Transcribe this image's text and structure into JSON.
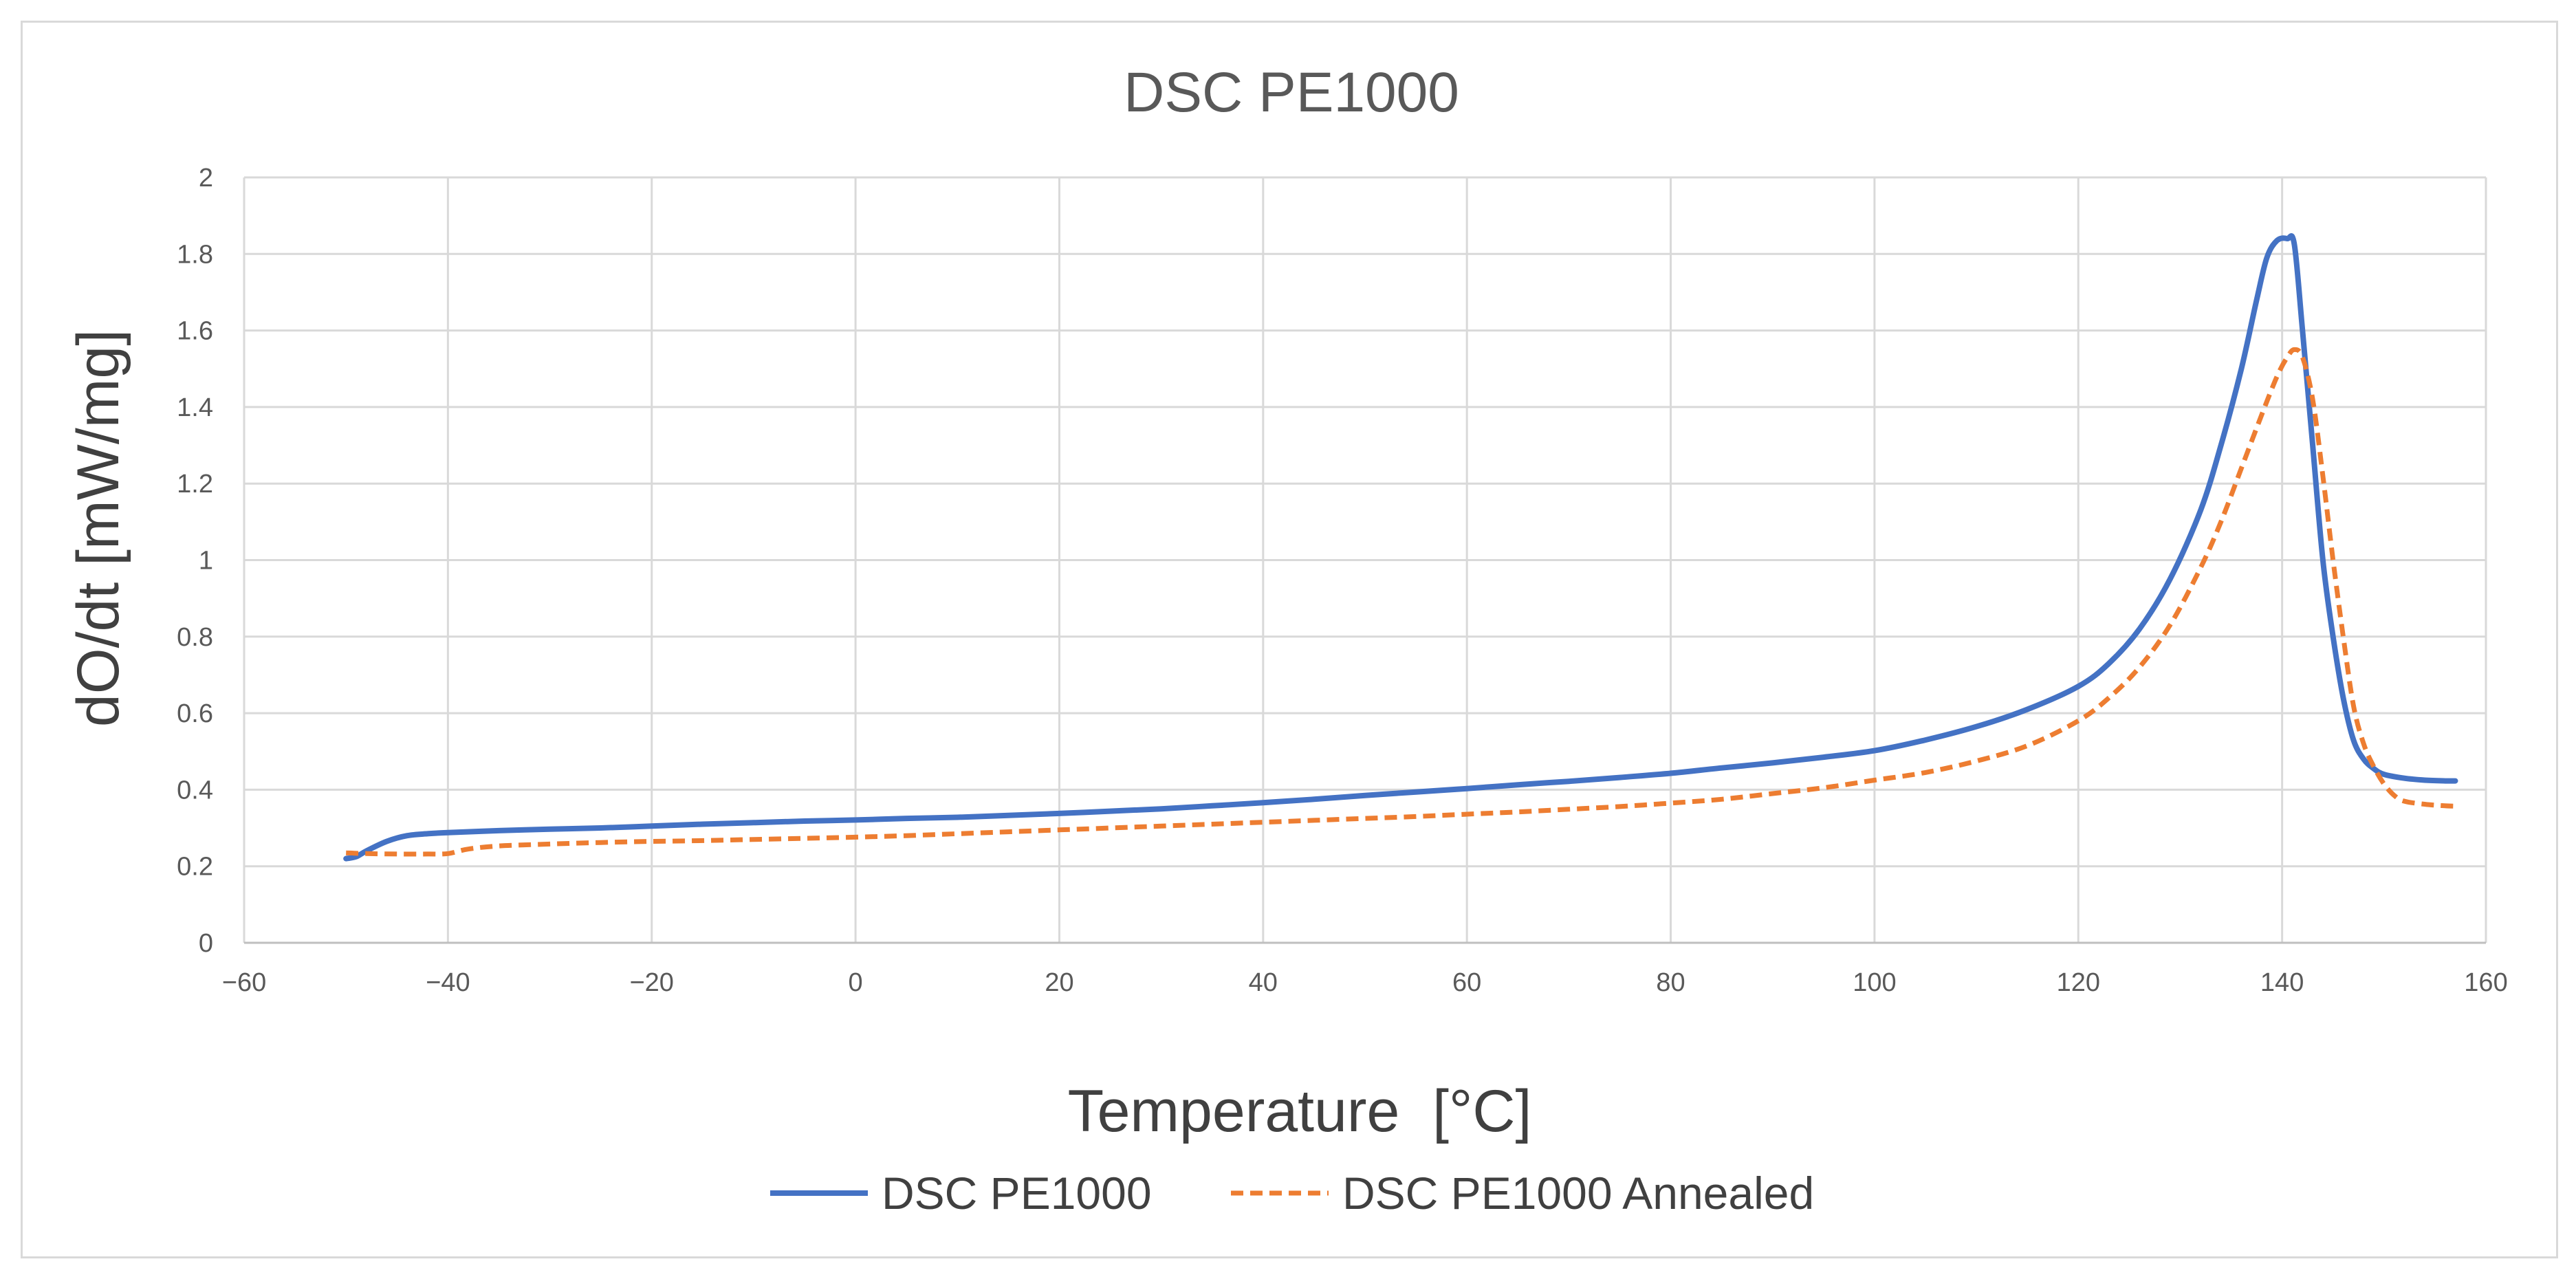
{
  "chart_data": {
    "type": "line",
    "title": "DSC PE1000",
    "xlabel": "Temperature  [°C]",
    "ylabel": "dO/dt [mW/mg]",
    "xlim": [
      -60,
      160
    ],
    "ylim": [
      0,
      2
    ],
    "xticks": [
      -60,
      -40,
      -20,
      0,
      20,
      40,
      60,
      80,
      100,
      120,
      140,
      160
    ],
    "yticks": [
      0,
      0.2,
      0.4,
      0.6,
      0.8,
      1,
      1.2,
      1.4,
      1.6,
      1.8,
      2
    ],
    "xtick_labels": [
      "−60",
      "−40",
      "−20",
      "0",
      "20",
      "40",
      "60",
      "80",
      "100",
      "120",
      "140",
      "160"
    ],
    "ytick_labels": [
      "0",
      "0.2",
      "0.4",
      "0.6",
      "0.8",
      "1",
      "1.2",
      "1.4",
      "1.6",
      "1.8",
      "2"
    ],
    "grid": true,
    "legend": "bottom-center",
    "series": [
      {
        "name": "DSC PE1000",
        "color": "#4472c4",
        "dash": "solid",
        "x": [
          -50,
          -49,
          -48,
          -46,
          -44,
          -42,
          -40,
          -35,
          -30,
          -25,
          -20,
          -15,
          -10,
          -5,
          0,
          5,
          10,
          15,
          20,
          25,
          30,
          35,
          40,
          45,
          50,
          55,
          60,
          65,
          70,
          75,
          80,
          85,
          90,
          95,
          100,
          105,
          110,
          115,
          120,
          123,
          126,
          129,
          132,
          134,
          136,
          137.5,
          138.5,
          139.5,
          140.5,
          141.2,
          142,
          143,
          144,
          145,
          146,
          147,
          148,
          149,
          150,
          152,
          154,
          156,
          157
        ],
        "y": [
          0.22,
          0.225,
          0.24,
          0.265,
          0.28,
          0.285,
          0.288,
          0.293,
          0.297,
          0.3,
          0.305,
          0.31,
          0.314,
          0.318,
          0.321,
          0.325,
          0.328,
          0.333,
          0.338,
          0.344,
          0.35,
          0.358,
          0.366,
          0.375,
          0.385,
          0.394,
          0.403,
          0.413,
          0.422,
          0.432,
          0.443,
          0.457,
          0.47,
          0.485,
          0.502,
          0.53,
          0.565,
          0.61,
          0.67,
          0.73,
          0.82,
          0.95,
          1.13,
          1.3,
          1.5,
          1.68,
          1.79,
          1.835,
          1.84,
          1.825,
          1.6,
          1.3,
          1.0,
          0.8,
          0.64,
          0.53,
          0.48,
          0.455,
          0.44,
          0.43,
          0.425,
          0.423,
          0.423
        ]
      },
      {
        "name": "DSC PE1000 Annealed",
        "color": "#ed7d31",
        "dash": "dashed",
        "x": [
          -50,
          -48,
          -45,
          -42,
          -40,
          -38,
          -35,
          -30,
          -25,
          -20,
          -15,
          -10,
          -5,
          0,
          5,
          10,
          15,
          20,
          25,
          30,
          35,
          40,
          45,
          50,
          55,
          60,
          65,
          70,
          75,
          80,
          85,
          90,
          95,
          100,
          105,
          110,
          115,
          120,
          123,
          126,
          129,
          132,
          134,
          136,
          138,
          139.5,
          140.5,
          141.2,
          142,
          143,
          144,
          145,
          146,
          147,
          148,
          149,
          150,
          151,
          152,
          154,
          156,
          157
        ],
        "y": [
          0.235,
          0.233,
          0.232,
          0.232,
          0.233,
          0.245,
          0.253,
          0.258,
          0.262,
          0.265,
          0.267,
          0.27,
          0.273,
          0.276,
          0.28,
          0.285,
          0.29,
          0.295,
          0.3,
          0.305,
          0.31,
          0.315,
          0.32,
          0.325,
          0.33,
          0.336,
          0.342,
          0.349,
          0.356,
          0.365,
          0.375,
          0.39,
          0.405,
          0.425,
          0.445,
          0.475,
          0.515,
          0.58,
          0.64,
          0.72,
          0.83,
          0.98,
          1.1,
          1.24,
          1.38,
          1.48,
          1.53,
          1.55,
          1.53,
          1.42,
          1.22,
          1.0,
          0.8,
          0.62,
          0.52,
          0.46,
          0.415,
          0.385,
          0.37,
          0.362,
          0.358,
          0.357
        ]
      }
    ]
  }
}
